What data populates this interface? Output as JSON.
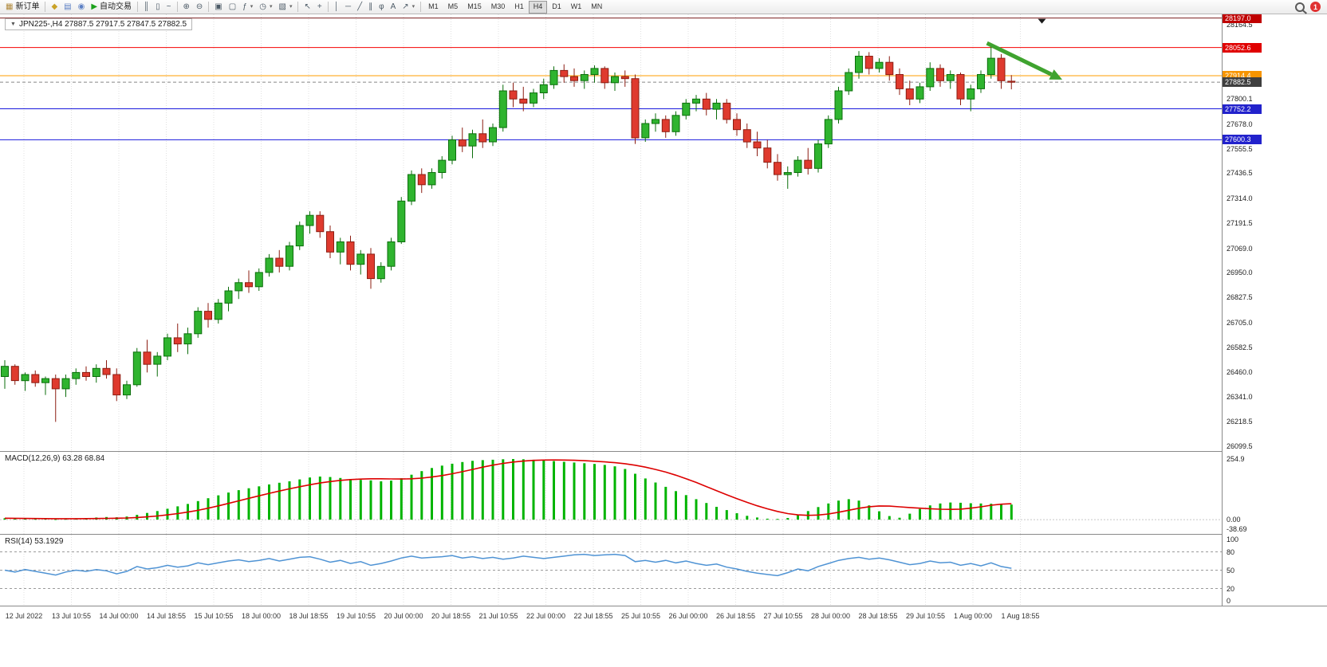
{
  "icons": {
    "collapse": "▼",
    "dropdown": "▾"
  },
  "toolbar": {
    "notification_count": "1",
    "items": [
      {
        "name": "new-order-button",
        "label": "新订单",
        "glyph": "▦",
        "glyph_color": "#b08a3e"
      },
      {
        "sep": true
      },
      {
        "name": "market-watch-button",
        "glyph": "◆",
        "glyph_color": "#c9a227"
      },
      {
        "name": "data-window-button",
        "glyph": "▤",
        "glyph_color": "#5b7fc4"
      },
      {
        "name": "navigator-button",
        "glyph": "◉",
        "glyph_color": "#5b7fc4"
      },
      {
        "name": "auto-trading-button",
        "label": "自动交易",
        "glyph": "▶",
        "glyph_color": "#1ba11b"
      },
      {
        "sep": true
      },
      {
        "name": "bar-chart-button",
        "glyph": "║"
      },
      {
        "name": "candlestick-chart-button",
        "glyph": "▯"
      },
      {
        "name": "line-chart-button",
        "glyph": "~"
      },
      {
        "sep": true
      },
      {
        "name": "zoom-in-button",
        "glyph": "⊕"
      },
      {
        "name": "zoom-out-button",
        "glyph": "⊖"
      },
      {
        "sep": true
      },
      {
        "name": "tile-windows-button",
        "glyph": "▣"
      },
      {
        "name": "cascade-windows-button",
        "glyph": "▢"
      },
      {
        "name": "indicators-button",
        "glyph": "ƒ",
        "dd": true
      },
      {
        "name": "periods-button",
        "glyph": "◷",
        "dd": true
      },
      {
        "name": "templates-button",
        "glyph": "▧",
        "dd": true
      },
      {
        "sep": true
      },
      {
        "name": "cursor-button",
        "glyph": "↖"
      },
      {
        "name": "crosshair-button",
        "glyph": "+"
      },
      {
        "sep": true
      },
      {
        "name": "vertical-line-button",
        "glyph": "│"
      },
      {
        "name": "horizontal-line-button",
        "glyph": "─"
      },
      {
        "name": "trendline-button",
        "glyph": "╱"
      },
      {
        "name": "channel-button",
        "glyph": "∥"
      },
      {
        "name": "fibonacci-button",
        "glyph": "φ"
      },
      {
        "name": "text-button",
        "glyph": "A"
      },
      {
        "name": "arrows-button",
        "glyph": "↗",
        "dd": true
      },
      {
        "sep": true
      },
      {
        "name": "tf-m1-button",
        "label": "M1",
        "tf": true
      },
      {
        "name": "tf-m5-button",
        "label": "M5",
        "tf": true
      },
      {
        "name": "tf-m15-button",
        "label": "M15",
        "tf": true
      },
      {
        "name": "tf-m30-button",
        "label": "M30",
        "tf": true
      },
      {
        "name": "tf-h1-button",
        "label": "H1",
        "tf": true
      },
      {
        "name": "tf-h4-button",
        "label": "H4",
        "tf": true,
        "active": true
      },
      {
        "name": "tf-d1-button",
        "label": "D1",
        "tf": true
      },
      {
        "name": "tf-w1-button",
        "label": "W1",
        "tf": true
      },
      {
        "name": "tf-mn-button",
        "label": "MN",
        "tf": true
      }
    ]
  },
  "chart_data": {
    "type": "candlestick",
    "symbol": "JPN225-",
    "timeframe": "H4",
    "ohlc_display": "27887.5 27917.5 27847.5 27882.5",
    "title_display": "JPN225-,H4  27887.5 27917.5 27847.5 27882.5",
    "colors": {
      "up": "#2fb42f",
      "up_stroke": "#0b6e0b",
      "down": "#df3a2e",
      "down_stroke": "#8c1d12"
    },
    "price_axis": {
      "max": 28215,
      "min": 26075,
      "ticks": [
        "28164.5",
        "27800.1",
        "27678.0",
        "27555.5",
        "27436.5",
        "27314.0",
        "27191.5",
        "27069.0",
        "26950.0",
        "26827.5",
        "26705.0",
        "26582.5",
        "26460.0",
        "26341.0",
        "26218.5",
        "26099.5"
      ]
    },
    "levels": [
      {
        "price": 28197.0,
        "label": "28197.0",
        "color": "#7b1f1f",
        "badge": "#c00000"
      },
      {
        "price": 28052.6,
        "label": "28052.6",
        "color": "#f40000",
        "badge": "#e00000"
      },
      {
        "price": 27914.4,
        "label": "27914.4",
        "color": "#ff9c00",
        "badge": "#f79500"
      },
      {
        "price": 27752.2,
        "label": "27752.2",
        "color": "#1919dd",
        "badge": "#2222cc"
      },
      {
        "price": 27600.3,
        "label": "27600.3",
        "color": "#1919dd",
        "badge": "#2222cc"
      }
    ],
    "current_price": {
      "value": 27882.5,
      "label": "27882.5",
      "badge": "#3f3f3f"
    },
    "annotations": {
      "arrow": {
        "from": {
          "index": 96.6,
          "price": 28074
        },
        "to": {
          "index": 104,
          "price": 27895
        },
        "color": "#3fa32f"
      },
      "marker": {
        "index": 102,
        "price": 28197
      }
    },
    "candles": [
      [
        26440,
        26520,
        26380,
        26490
      ],
      [
        26490,
        26500,
        26400,
        26420
      ],
      [
        26420,
        26460,
        26370,
        26450
      ],
      [
        26450,
        26470,
        26390,
        26410
      ],
      [
        26410,
        26440,
        26350,
        26430
      ],
      [
        26430,
        26450,
        26218,
        26380
      ],
      [
        26380,
        26450,
        26340,
        26430
      ],
      [
        26430,
        26480,
        26400,
        26460
      ],
      [
        26460,
        26490,
        26420,
        26440
      ],
      [
        26440,
        26500,
        26410,
        26480
      ],
      [
        26480,
        26520,
        26430,
        26450
      ],
      [
        26450,
        26480,
        26320,
        26350
      ],
      [
        26350,
        26420,
        26330,
        26400
      ],
      [
        26400,
        26580,
        26390,
        26560
      ],
      [
        26560,
        26620,
        26460,
        26500
      ],
      [
        26500,
        26560,
        26440,
        26540
      ],
      [
        26540,
        26650,
        26520,
        26630
      ],
      [
        26630,
        26700,
        26560,
        26600
      ],
      [
        26600,
        26680,
        26550,
        26650
      ],
      [
        26650,
        26780,
        26630,
        26760
      ],
      [
        26760,
        26800,
        26680,
        26720
      ],
      [
        26720,
        26820,
        26700,
        26800
      ],
      [
        26800,
        26880,
        26760,
        26860
      ],
      [
        26860,
        26920,
        26820,
        26900
      ],
      [
        26900,
        26960,
        26850,
        26880
      ],
      [
        26880,
        26970,
        26860,
        26950
      ],
      [
        26950,
        27040,
        26930,
        27020
      ],
      [
        27020,
        27060,
        26950,
        26980
      ],
      [
        26980,
        27100,
        26960,
        27080
      ],
      [
        27080,
        27200,
        27060,
        27180
      ],
      [
        27180,
        27250,
        27140,
        27230
      ],
      [
        27230,
        27250,
        27120,
        27150
      ],
      [
        27150,
        27180,
        27020,
        27050
      ],
      [
        27050,
        27120,
        26990,
        27100
      ],
      [
        27100,
        27130,
        26960,
        26990
      ],
      [
        26990,
        27060,
        26940,
        27040
      ],
      [
        27040,
        27070,
        26870,
        26920
      ],
      [
        26920,
        27000,
        26900,
        26980
      ],
      [
        26980,
        27120,
        26960,
        27100
      ],
      [
        27100,
        27320,
        27090,
        27300
      ],
      [
        27300,
        27450,
        27280,
        27430
      ],
      [
        27430,
        27460,
        27340,
        27380
      ],
      [
        27380,
        27460,
        27360,
        27440
      ],
      [
        27440,
        27520,
        27410,
        27500
      ],
      [
        27500,
        27620,
        27480,
        27600
      ],
      [
        27600,
        27660,
        27540,
        27570
      ],
      [
        27570,
        27650,
        27510,
        27630
      ],
      [
        27630,
        27700,
        27560,
        27590
      ],
      [
        27590,
        27680,
        27570,
        27660
      ],
      [
        27660,
        27870,
        27640,
        27840
      ],
      [
        27840,
        27880,
        27760,
        27800
      ],
      [
        27800,
        27860,
        27740,
        27780
      ],
      [
        27780,
        27850,
        27760,
        27830
      ],
      [
        27830,
        27900,
        27800,
        27870
      ],
      [
        27870,
        27960,
        27850,
        27940
      ],
      [
        27940,
        27970,
        27880,
        27910
      ],
      [
        27910,
        27950,
        27860,
        27890
      ],
      [
        27890,
        27940,
        27850,
        27920
      ],
      [
        27920,
        27965,
        27880,
        27950
      ],
      [
        27950,
        27960,
        27850,
        27880
      ],
      [
        27880,
        27930,
        27840,
        27910
      ],
      [
        27910,
        27940,
        27860,
        27900
      ],
      [
        27900,
        27920,
        27580,
        27610
      ],
      [
        27610,
        27700,
        27590,
        27680
      ],
      [
        27680,
        27730,
        27640,
        27700
      ],
      [
        27700,
        27720,
        27610,
        27640
      ],
      [
        27640,
        27740,
        27620,
        27720
      ],
      [
        27720,
        27800,
        27700,
        27780
      ],
      [
        27780,
        27820,
        27740,
        27800
      ],
      [
        27800,
        27830,
        27720,
        27750
      ],
      [
        27750,
        27800,
        27700,
        27780
      ],
      [
        27780,
        27800,
        27680,
        27700
      ],
      [
        27700,
        27730,
        27620,
        27650
      ],
      [
        27650,
        27680,
        27560,
        27590
      ],
      [
        27590,
        27640,
        27520,
        27560
      ],
      [
        27560,
        27600,
        27460,
        27490
      ],
      [
        27490,
        27530,
        27400,
        27430
      ],
      [
        27430,
        27470,
        27360,
        27440
      ],
      [
        27440,
        27520,
        27420,
        27500
      ],
      [
        27500,
        27560,
        27430,
        27460
      ],
      [
        27460,
        27600,
        27440,
        27580
      ],
      [
        27580,
        27720,
        27560,
        27700
      ],
      [
        27700,
        27860,
        27680,
        27840
      ],
      [
        27840,
        27950,
        27820,
        27930
      ],
      [
        27930,
        28035,
        27900,
        28010
      ],
      [
        28010,
        28030,
        27920,
        27950
      ],
      [
        27950,
        28000,
        27930,
        27980
      ],
      [
        27980,
        28010,
        27890,
        27920
      ],
      [
        27920,
        27950,
        27820,
        27850
      ],
      [
        27850,
        27890,
        27770,
        27800
      ],
      [
        27800,
        27880,
        27780,
        27860
      ],
      [
        27860,
        27980,
        27840,
        27950
      ],
      [
        27950,
        27970,
        27860,
        27890
      ],
      [
        27890,
        27940,
        27850,
        27920
      ],
      [
        27920,
        27930,
        27770,
        27800
      ],
      [
        27800,
        27870,
        27740,
        27850
      ],
      [
        27850,
        27940,
        27830,
        27920
      ],
      [
        27920,
        28060,
        27900,
        28000
      ],
      [
        28000,
        28020,
        27850,
        27890
      ],
      [
        27887.5,
        27917.5,
        27847.5,
        27882.5
      ]
    ],
    "time_labels": [
      "12 Jul 2022",
      "13 Jul 10:55",
      "14 Jul 00:00",
      "14 Jul 18:55",
      "15 Jul 10:55",
      "18 Jul 00:00",
      "18 Jul 18:55",
      "19 Jul 10:55",
      "20 Jul 00:00",
      "20 Jul 18:55",
      "21 Jul 10:55",
      "22 Jul 00:00",
      "22 Jul 18:55",
      "25 Jul 10:55",
      "26 Jul 00:00",
      "26 Jul 18:55",
      "27 Jul 10:55",
      "28 Jul 00:00",
      "28 Jul 18:55",
      "29 Jul 10:55",
      "1 Aug 00:00",
      "1 Aug 18:55"
    ],
    "macd": {
      "label_display": "MACD(12,26,9) 63.28 68.84",
      "color": "#00b400",
      "signal_color": "#dd0000",
      "axis": [
        "254.9",
        "0.00",
        "-38.69"
      ],
      "range": {
        "min": -60,
        "max": 285
      },
      "histogram": [
        6,
        5,
        4,
        3,
        4,
        2,
        3,
        5,
        7,
        9,
        11,
        10,
        13,
        20,
        28,
        36,
        46,
        56,
        66,
        78,
        90,
        102,
        114,
        124,
        132,
        140,
        148,
        155,
        161,
        169,
        177,
        181,
        179,
        175,
        171,
        167,
        165,
        161,
        164,
        174,
        189,
        204,
        217,
        227,
        235,
        242,
        247,
        250,
        252,
        254,
        255,
        254,
        252,
        249,
        246,
        243,
        240,
        237,
        234,
        230,
        224,
        213,
        193,
        173,
        156,
        138,
        120,
        103,
        86,
        70,
        54,
        40,
        27,
        16,
        9,
        4,
        3,
        7,
        19,
        36,
        53,
        68,
        80,
        86,
        80,
        60,
        35,
        15,
        8,
        25,
        45,
        60,
        68,
        72,
        71,
        69,
        68,
        67,
        65,
        63.28
      ]
    },
    "rsi": {
      "label_display": "RSI(14) 53.1929",
      "color": "#4f93d4",
      "axis": [
        "100",
        "80",
        "50",
        "20",
        "0"
      ],
      "levels": [
        80,
        50,
        20
      ],
      "range": {
        "min": -8,
        "max": 108
      },
      "values": [
        50,
        47,
        51,
        48,
        45,
        42,
        47,
        50,
        48,
        51,
        49,
        44,
        48,
        56,
        52,
        54,
        58,
        55,
        57,
        62,
        59,
        62,
        65,
        67,
        64,
        66,
        69,
        65,
        68,
        71,
        72,
        68,
        63,
        66,
        61,
        64,
        58,
        61,
        65,
        70,
        73,
        70,
        71,
        72,
        74,
        70,
        72,
        69,
        71,
        68,
        70,
        73,
        71,
        69,
        71,
        73,
        75,
        76,
        74,
        75,
        76,
        74,
        64,
        66,
        63,
        66,
        62,
        65,
        61,
        58,
        60,
        55,
        52,
        48,
        45,
        43,
        41,
        46,
        52,
        49,
        56,
        61,
        66,
        69,
        71,
        68,
        70,
        67,
        63,
        59,
        61,
        65,
        62,
        63,
        58,
        61,
        57,
        62,
        56,
        53.19
      ]
    }
  }
}
